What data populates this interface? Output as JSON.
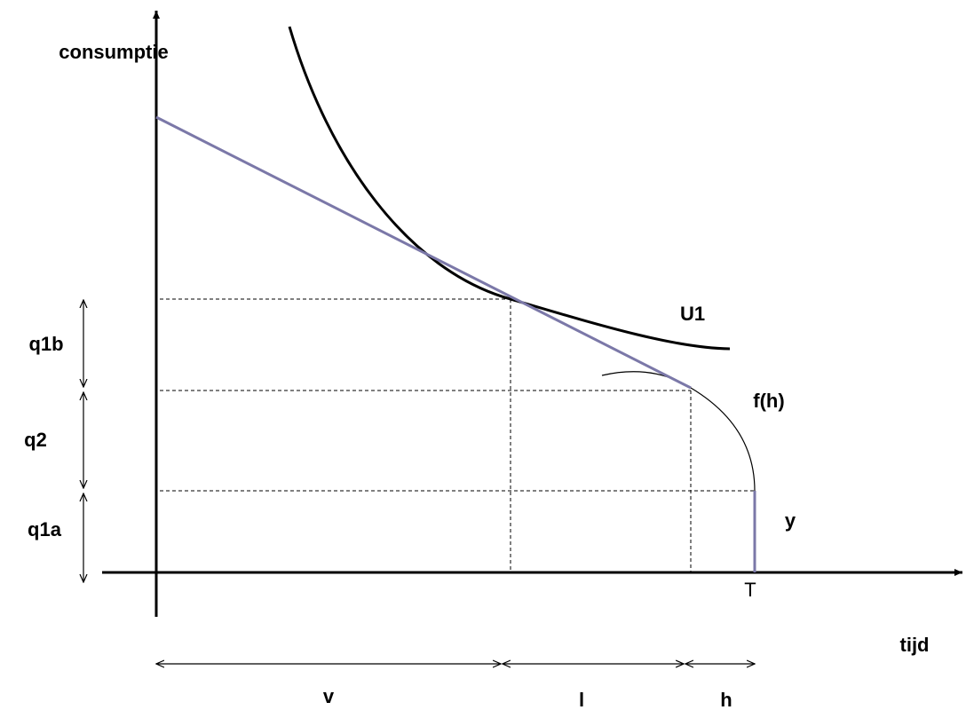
{
  "labels": {
    "y_axis": "consumptie",
    "x_axis": "tijd",
    "indifference": "U1",
    "production": "f(h)",
    "endowment": "y",
    "total_time": "T",
    "q1b": "q1b",
    "q2": "q2",
    "q1a": "q1a",
    "v": "v",
    "l": "l",
    "h": "h"
  }
}
